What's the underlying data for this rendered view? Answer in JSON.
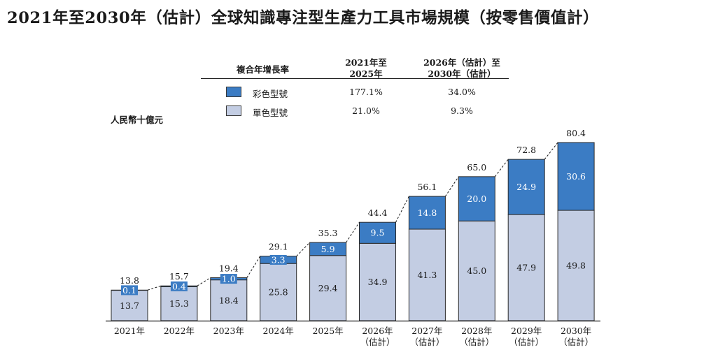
{
  "title": "2021年至2030年（估計）全球知識專注型生產力工具市場規模（按零售價值計）",
  "cagr": {
    "header_label": "複合年增長率",
    "period1_line1": "2021年至",
    "period1_line2": "2025年",
    "period2_line1": "2026年（估計）至",
    "period2_line2": "2030年（估計）",
    "rows": [
      {
        "label": "彩色型號",
        "p1": "177.1%",
        "p2": "34.0%",
        "color": "#3b7cc4"
      },
      {
        "label": "單色型號",
        "p1": "21.0%",
        "p2": "9.3%",
        "color": "#c3cde3"
      }
    ]
  },
  "chart_data": {
    "type": "bar",
    "stacked": true,
    "ylabel": "人民幣十億元",
    "categories": [
      [
        "2021年"
      ],
      [
        "2022年"
      ],
      [
        "2023年"
      ],
      [
        "2024年"
      ],
      [
        "2025年"
      ],
      [
        "2026年",
        "（估計）"
      ],
      [
        "2027年",
        "（估計）"
      ],
      [
        "2028年",
        "（估計）"
      ],
      [
        "2029年",
        "（估計）"
      ],
      [
        "2030年",
        "（估計）"
      ]
    ],
    "series": [
      {
        "name": "單色型號",
        "color": "#c3cde3",
        "values": [
          13.7,
          15.3,
          18.4,
          25.8,
          29.4,
          34.9,
          41.3,
          45.0,
          47.9,
          49.8
        ],
        "labels": [
          "13.7",
          "15.3",
          "18.4",
          "25.8",
          "29.4",
          "34.9",
          "41.3",
          "45.0",
          "47.9",
          "49.8"
        ]
      },
      {
        "name": "彩色型號",
        "color": "#3b7cc4",
        "values": [
          0.1,
          0.4,
          1.0,
          3.3,
          5.9,
          9.5,
          14.8,
          20.0,
          24.9,
          30.6
        ],
        "labels": [
          "0.1",
          "0.4",
          "1.0",
          "3.3",
          "5.9",
          "9.5",
          "14.8",
          "20.0",
          "24.9",
          "30.6"
        ]
      }
    ],
    "totals": [
      13.8,
      15.7,
      19.4,
      29.1,
      35.3,
      44.4,
      56.1,
      65.0,
      72.8,
      80.4
    ],
    "total_labels": [
      "13.8",
      "15.7",
      "19.4",
      "29.1",
      "35.3",
      "44.4",
      "56.1",
      "65.0",
      "72.8",
      "80.4"
    ],
    "ylim": [
      0,
      80.4
    ],
    "grid": false,
    "connectors": "dashed",
    "legend_position": "top"
  }
}
